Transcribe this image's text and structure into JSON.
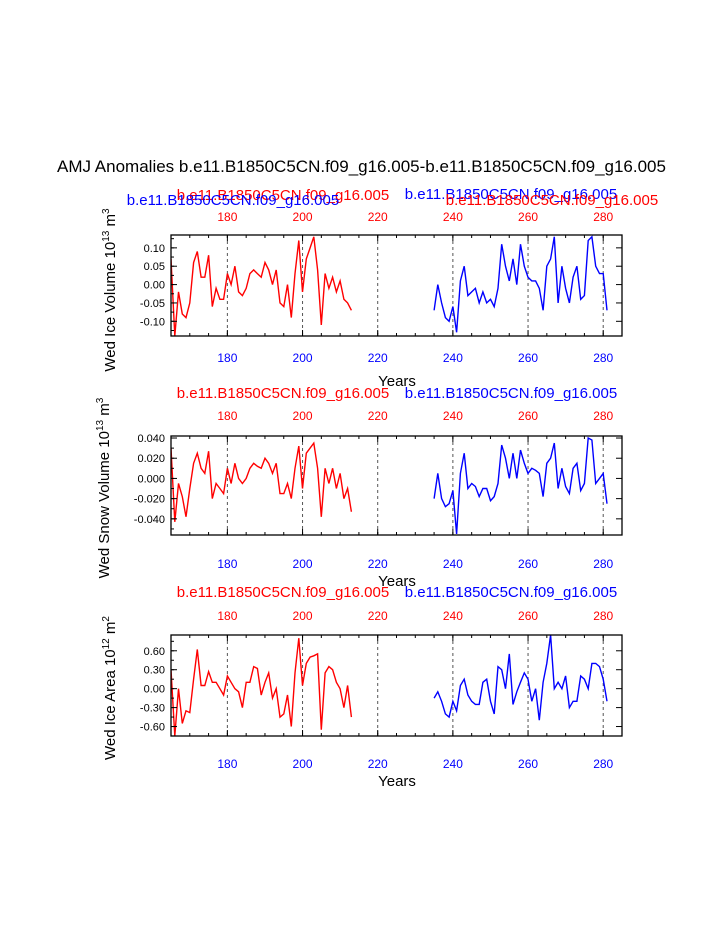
{
  "page": {
    "title": "AMJ Anomalies b.e11.B1850C5CN.f09_g16.005-b.e11.B1850C5CN.f09_g16.005"
  },
  "colors": {
    "series_a": "#ff0000",
    "series_b": "#0000ff",
    "axis": "#000000"
  },
  "chart_data": [
    {
      "type": "line",
      "id": "ice-volume",
      "ylabel": "Wed Ice Volume 10",
      "ylabel_exp": "13",
      "ylabel_unit": " m",
      "ylabel_unit_exp": "3",
      "xlabel": "Years",
      "xlim": [
        165,
        285
      ],
      "ylim": [
        -0.14,
        0.135
      ],
      "yticks": [
        "0.10",
        "0.05",
        "0.00",
        "-0.05",
        "-0.10"
      ],
      "ytick_values": [
        0.1,
        0.05,
        0.0,
        -0.05,
        -0.1
      ],
      "xticks": [
        180,
        200,
        220,
        240,
        260,
        280
      ],
      "gridlines_x": [
        180,
        200,
        220,
        240,
        260,
        280
      ],
      "top_labels": [
        "b.e11.B1850C5CN.f09_g16.005",
        "b.e11.B1850C5CN.f09_g16.005",
        "b.e11.B1850C5CN.f09_g16.005",
        "b.e11.B1850C5CN.f09_g16.005"
      ],
      "series": [
        {
          "name": "b.e11.B1850C5CN.f09_g16.005",
          "x_start": 165,
          "values": [
            0.07,
            -0.14,
            -0.02,
            -0.08,
            -0.09,
            -0.05,
            0.06,
            0.09,
            0.02,
            0.02,
            0.08,
            -0.06,
            -0.01,
            -0.04,
            -0.04,
            0.03,
            0.0,
            0.05,
            -0.02,
            -0.03,
            -0.01,
            0.03,
            0.04,
            0.03,
            0.02,
            0.06,
            0.04,
            0.0,
            0.04,
            -0.05,
            -0.06,
            0.0,
            -0.09,
            0.03,
            0.12,
            -0.02,
            0.07,
            0.1,
            0.13,
            0.04,
            -0.11,
            0.03,
            -0.01,
            0.02,
            -0.02,
            0.01,
            -0.04,
            -0.05,
            -0.07
          ]
        },
        {
          "name": "b.e11.B1850C5CN.f09_g16.005",
          "x_start": 235,
          "values": [
            -0.07,
            0.0,
            -0.05,
            -0.09,
            -0.1,
            -0.06,
            -0.13,
            0.01,
            0.05,
            -0.03,
            -0.02,
            -0.01,
            -0.05,
            -0.02,
            -0.05,
            -0.04,
            -0.06,
            -0.01,
            0.11,
            0.05,
            0.01,
            0.07,
            0.0,
            0.11,
            0.05,
            0.02,
            0.01,
            0.01,
            -0.01,
            -0.07,
            0.05,
            0.07,
            0.13,
            -0.05,
            0.05,
            -0.01,
            -0.05,
            0.02,
            0.05,
            -0.04,
            -0.03,
            0.12,
            0.13,
            0.05,
            0.03,
            0.03,
            -0.07
          ]
        }
      ]
    },
    {
      "type": "line",
      "id": "snow-volume",
      "ylabel": "Wed Snow Volume 10",
      "ylabel_exp": "13",
      "ylabel_unit": " m",
      "ylabel_unit_exp": "3",
      "xlabel": "Years",
      "xlim": [
        165,
        285
      ],
      "ylim": [
        -0.056,
        0.042
      ],
      "yticks": [
        "0.040",
        "0.020",
        "0.000",
        "-0.020",
        "-0.040"
      ],
      "ytick_values": [
        0.04,
        0.02,
        0.0,
        -0.02,
        -0.04
      ],
      "xticks": [
        180,
        200,
        220,
        240,
        260,
        280
      ],
      "gridlines_x": [
        180,
        200,
        220,
        240,
        260,
        280
      ],
      "top_labels": [
        "b.e11.B1850C5CN.f09_g16.005",
        "b.e11.B1850C5CN.f09_g16.005"
      ],
      "series": [
        {
          "name": "b.e11.B1850C5CN.f09_g16.005",
          "x_start": 165,
          "values": [
            0.03,
            -0.043,
            -0.005,
            -0.018,
            -0.038,
            -0.01,
            0.015,
            0.025,
            0.01,
            0.005,
            0.027,
            -0.02,
            -0.005,
            -0.01,
            -0.015,
            0.01,
            -0.005,
            0.015,
            0.0,
            -0.005,
            0.0,
            0.01,
            0.015,
            0.012,
            0.01,
            0.02,
            0.015,
            0.005,
            0.015,
            -0.015,
            -0.015,
            -0.005,
            -0.02,
            0.01,
            0.032,
            -0.01,
            0.025,
            0.03,
            0.035,
            0.01,
            -0.038,
            0.01,
            -0.005,
            0.01,
            -0.01,
            0.005,
            -0.02,
            -0.01,
            -0.033
          ]
        },
        {
          "name": "b.e11.B1850C5CN.f09_g16.005",
          "x_start": 235,
          "values": [
            -0.02,
            0.005,
            -0.02,
            -0.028,
            -0.025,
            -0.012,
            -0.055,
            0.005,
            0.025,
            -0.01,
            -0.005,
            -0.008,
            -0.018,
            -0.01,
            -0.01,
            -0.022,
            -0.018,
            -0.005,
            0.033,
            0.02,
            0.0,
            0.025,
            0.0,
            0.028,
            0.015,
            0.005,
            0.01,
            0.008,
            0.005,
            -0.018,
            0.015,
            0.02,
            0.035,
            -0.01,
            0.01,
            -0.008,
            -0.015,
            0.01,
            0.015,
            -0.012,
            -0.005,
            0.04,
            0.038,
            -0.005,
            0.0,
            0.005,
            -0.025
          ]
        }
      ]
    },
    {
      "type": "line",
      "id": "ice-area",
      "ylabel": "Wed Ice Area 10",
      "ylabel_exp": "12",
      "ylabel_unit": " m",
      "ylabel_unit_exp": "2",
      "xlabel": "Years",
      "xlim": [
        165,
        285
      ],
      "ylim": [
        -0.75,
        0.85
      ],
      "yticks": [
        "0.60",
        "0.30",
        "0.00",
        "-0.30",
        "-0.60"
      ],
      "ytick_values": [
        0.6,
        0.3,
        0.0,
        -0.3,
        -0.6
      ],
      "xticks": [
        180,
        200,
        220,
        240,
        260,
        280
      ],
      "gridlines_x": [
        180,
        200,
        220,
        240,
        260,
        280
      ],
      "top_labels": [
        "b.e11.B1850C5CN.f09_g16.005",
        "b.e11.B1850C5CN.f09_g16.005"
      ],
      "series": [
        {
          "name": "b.e11.B1850C5CN.f09_g16.005",
          "x_start": 165,
          "values": [
            0.3,
            -0.75,
            0.0,
            -0.55,
            -0.35,
            -0.38,
            0.15,
            0.62,
            0.05,
            0.05,
            0.27,
            0.1,
            0.1,
            0.0,
            -0.1,
            0.2,
            0.1,
            0.0,
            -0.05,
            -0.3,
            0.1,
            0.1,
            0.35,
            0.32,
            -0.1,
            0.1,
            0.25,
            -0.15,
            0.0,
            -0.45,
            -0.4,
            -0.1,
            -0.6,
            0.25,
            0.8,
            0.05,
            0.4,
            0.5,
            0.52,
            0.55,
            -0.65,
            0.25,
            0.35,
            0.3,
            0.1,
            0.0,
            -0.3,
            0.05,
            -0.45
          ]
        },
        {
          "name": "b.e11.B1850C5CN.f09_g16.005",
          "x_start": 235,
          "values": [
            -0.15,
            -0.05,
            -0.2,
            -0.4,
            -0.45,
            -0.2,
            -0.35,
            0.05,
            0.15,
            -0.1,
            -0.2,
            -0.25,
            -0.25,
            0.1,
            0.15,
            -0.2,
            -0.4,
            0.35,
            0.3,
            0.0,
            0.55,
            -0.25,
            -0.05,
            0.1,
            0.25,
            0.15,
            -0.2,
            0.0,
            -0.5,
            0.1,
            0.4,
            0.85,
            0.0,
            0.1,
            0.0,
            0.2,
            -0.3,
            -0.2,
            -0.2,
            0.2,
            0.15,
            0.0,
            0.4,
            0.4,
            0.35,
            0.15,
            -0.2
          ]
        }
      ]
    }
  ]
}
